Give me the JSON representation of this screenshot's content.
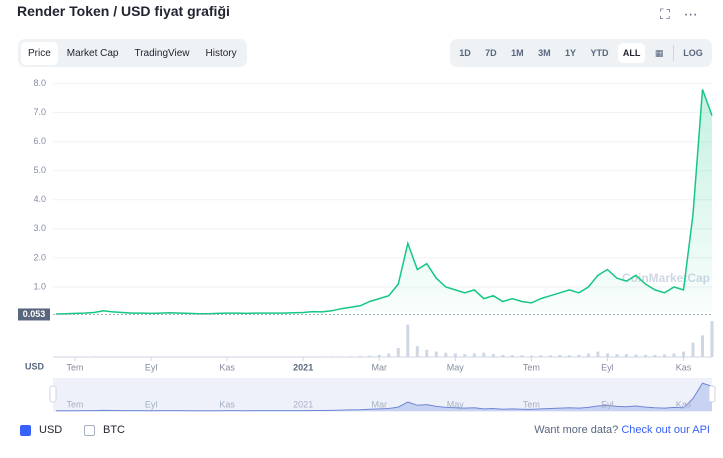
{
  "header": {
    "title": "Render Token / USD fiyat grafiği"
  },
  "tabs": [
    "Price",
    "Market Cap",
    "TradingView",
    "History"
  ],
  "ranges": [
    "1D",
    "7D",
    "1M",
    "3M",
    "1Y",
    "YTD",
    "ALL"
  ],
  "log_toggle": "LOG",
  "chart_data": {
    "type": "line",
    "categories": [
      null,
      null,
      "Tem",
      null,
      null,
      null,
      null,
      null,
      null,
      null,
      "Eyl",
      null,
      null,
      null,
      null,
      null,
      null,
      null,
      "Kas",
      null,
      null,
      null,
      null,
      null,
      null,
      null,
      "2021",
      null,
      null,
      null,
      null,
      null,
      null,
      null,
      "Mar",
      null,
      null,
      null,
      null,
      null,
      null,
      null,
      "May",
      null,
      null,
      null,
      null,
      null,
      null,
      null,
      "Tem",
      null,
      null,
      null,
      null,
      null,
      null,
      null,
      "Eyl",
      null,
      null,
      null,
      null,
      null,
      null,
      null,
      "Kas",
      null,
      null,
      null
    ],
    "series": [
      {
        "name": "USD",
        "color": "#16c784",
        "values": [
          0.07,
          0.08,
          0.09,
          0.1,
          0.12,
          0.18,
          0.14,
          0.12,
          0.1,
          0.1,
          0.09,
          0.1,
          0.11,
          0.1,
          0.09,
          0.08,
          0.08,
          0.09,
          0.1,
          0.1,
          0.09,
          0.1,
          0.1,
          0.1,
          0.1,
          0.11,
          0.12,
          0.15,
          0.14,
          0.18,
          0.25,
          0.3,
          0.35,
          0.5,
          0.6,
          0.7,
          1.1,
          2.5,
          1.6,
          1.8,
          1.3,
          1.0,
          0.9,
          0.8,
          0.9,
          0.6,
          0.7,
          0.5,
          0.6,
          0.5,
          0.45,
          0.6,
          0.7,
          0.8,
          0.9,
          0.8,
          1.0,
          1.4,
          1.6,
          1.3,
          1.2,
          1.4,
          1.1,
          0.9,
          0.8,
          1.0,
          0.9,
          3.5,
          7.8,
          6.9
        ]
      }
    ],
    "volume": [
      1,
      1,
      1,
      1,
      2,
      2,
      1,
      1,
      1,
      1,
      1,
      1,
      1,
      1,
      1,
      1,
      1,
      1,
      1,
      1,
      1,
      1,
      1,
      1,
      1,
      1,
      1,
      2,
      2,
      2,
      2,
      2,
      3,
      4,
      6,
      10,
      25,
      90,
      30,
      20,
      15,
      12,
      10,
      8,
      10,
      12,
      8,
      6,
      5,
      5,
      4,
      5,
      5,
      6,
      5,
      6,
      10,
      15,
      10,
      8,
      8,
      7,
      6,
      6,
      7,
      10,
      15,
      40,
      60,
      100
    ],
    "ylim": [
      0,
      8.4
    ],
    "yticks": [
      {
        "value": 1,
        "label": "1.0"
      },
      {
        "value": 2,
        "label": "2.0"
      },
      {
        "value": 3,
        "label": "3.0"
      },
      {
        "value": 4,
        "label": "4.0"
      },
      {
        "value": 5,
        "label": "5.0"
      },
      {
        "value": 6,
        "label": "6.0"
      },
      {
        "value": 7,
        "label": "7.0"
      },
      {
        "value": 8,
        "label": "8.0"
      }
    ],
    "grid": true,
    "start_price": 0.053,
    "watermark": "CoinMarketCap"
  },
  "footer": {
    "options": [
      {
        "label": "USD",
        "checked": true
      },
      {
        "label": "BTC",
        "checked": false
      }
    ],
    "prompt": "Want more data?",
    "link": "Check out our API"
  }
}
